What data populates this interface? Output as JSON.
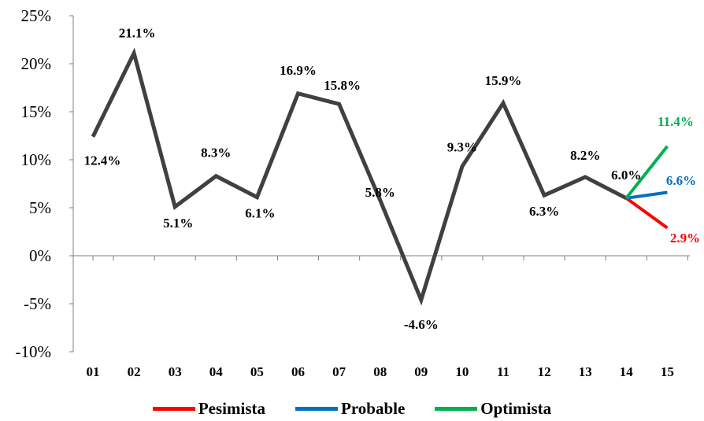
{
  "chart_data": {
    "type": "line",
    "categories": [
      "01",
      "02",
      "03",
      "04",
      "05",
      "06",
      "07",
      "08",
      "09",
      "10",
      "11",
      "12",
      "13",
      "14",
      "15"
    ],
    "yticks": [
      "25%",
      "20%",
      "15%",
      "10%",
      "5%",
      "0%",
      "-5%",
      "-10%"
    ],
    "ylim": [
      -10,
      25
    ],
    "grid": false,
    "legend_position": "bottom",
    "series": [
      {
        "values": [
          12.4,
          21.1,
          5.1,
          8.3,
          6.1,
          16.9,
          15.8,
          5.8,
          -4.6,
          9.3,
          15.9,
          6.3,
          8.2,
          6.0,
          null
        ],
        "labels": [
          "12.4%",
          "21.1%",
          "5.1%",
          "8.3%",
          "6.1%",
          "16.9%",
          "15.8%",
          "5.8%",
          "-4.6%",
          "9.3%",
          "15.9%",
          "6.3%",
          "8.2%",
          "6.0%",
          ""
        ],
        "color": "#404040"
      },
      {
        "name": "Pesimista",
        "color": "#ff0000",
        "values": [
          null,
          null,
          null,
          null,
          null,
          null,
          null,
          null,
          null,
          null,
          null,
          null,
          null,
          6.0,
          2.9
        ],
        "label": "2.9%"
      },
      {
        "name": "Probable",
        "color": "#0070c0",
        "values": [
          null,
          null,
          null,
          null,
          null,
          null,
          null,
          null,
          null,
          null,
          null,
          null,
          null,
          6.0,
          6.6
        ],
        "label": "6.6%"
      },
      {
        "name": "Optimista",
        "color": "#00b050",
        "values": [
          null,
          null,
          null,
          null,
          null,
          null,
          null,
          null,
          null,
          null,
          null,
          null,
          null,
          6.0,
          11.4
        ],
        "label": "11.4%"
      }
    ]
  }
}
